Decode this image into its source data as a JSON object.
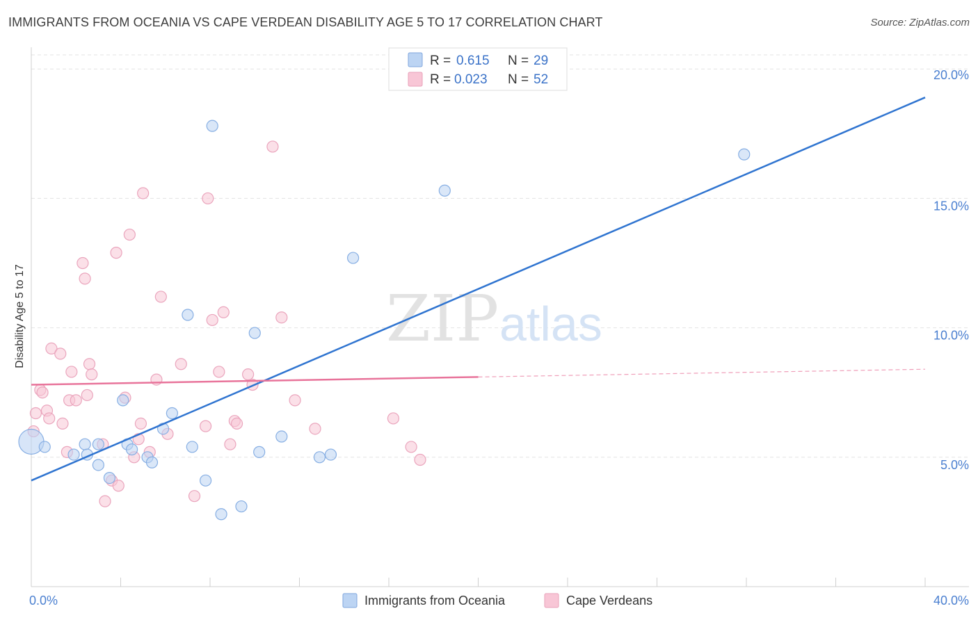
{
  "header": {
    "title": "IMMIGRANTS FROM OCEANIA VS CAPE VERDEAN DISABILITY AGE 5 TO 17 CORRELATION CHART",
    "source": "Source: ZipAtlas.com"
  },
  "watermark": {
    "zip": "ZIP",
    "atlas": "atlas"
  },
  "colors": {
    "blue": "#4a7fd0",
    "blue_fill": "#bcd4f3",
    "blue_line": "#2f74d0",
    "pink_fill": "#f8c6d6",
    "pink_line": "#e8739a"
  },
  "legend": {
    "rows": [
      {
        "r_label": "R =",
        "r_value": "0.615",
        "n_label": "N =",
        "n_value": "29"
      },
      {
        "r_label": "R =",
        "r_value": "0.023",
        "n_label": "N =",
        "n_value": "52"
      }
    ]
  },
  "bottom_legend": {
    "items": [
      "Immigrants from Oceania",
      "Cape Verdeans"
    ]
  },
  "chart_data": {
    "type": "scatter",
    "xlabel": "",
    "ylabel": "Disability Age 5 to 17",
    "xlim": [
      0,
      40
    ],
    "ylim": [
      0,
      21
    ],
    "x_tick_labels": [
      "0.0%",
      "40.0%"
    ],
    "y_ticks": [
      5,
      10,
      15,
      20
    ],
    "y_tick_labels": [
      "5.0%",
      "10.0%",
      "15.0%",
      "20.0%"
    ],
    "grid": "horizontal dashed",
    "legend_position": "top-center",
    "series": [
      {
        "name": "Immigrants from Oceania",
        "points": [
          [
            0.0,
            5.6
          ],
          [
            0.6,
            5.4
          ],
          [
            1.9,
            5.1
          ],
          [
            2.4,
            5.5
          ],
          [
            2.5,
            5.1
          ],
          [
            3.0,
            5.5
          ],
          [
            3.0,
            4.7
          ],
          [
            3.5,
            4.2
          ],
          [
            4.3,
            5.5
          ],
          [
            4.1,
            7.2
          ],
          [
            4.5,
            5.3
          ],
          [
            5.2,
            5.0
          ],
          [
            5.4,
            4.8
          ],
          [
            5.9,
            6.1
          ],
          [
            6.3,
            6.7
          ],
          [
            7.0,
            10.5
          ],
          [
            7.2,
            5.4
          ],
          [
            7.8,
            4.1
          ],
          [
            8.1,
            17.8
          ],
          [
            8.5,
            2.8
          ],
          [
            9.4,
            3.1
          ],
          [
            10.0,
            9.8
          ],
          [
            10.2,
            5.2
          ],
          [
            11.2,
            5.8
          ],
          [
            12.9,
            5.0
          ],
          [
            13.4,
            5.1
          ],
          [
            14.4,
            12.7
          ],
          [
            18.5,
            15.3
          ],
          [
            31.9,
            16.7
          ]
        ]
      },
      {
        "name": "Cape Verdeans",
        "points": [
          [
            0.1,
            6.0
          ],
          [
            0.2,
            6.7
          ],
          [
            0.4,
            7.6
          ],
          [
            0.5,
            7.5
          ],
          [
            0.7,
            6.8
          ],
          [
            0.8,
            6.5
          ],
          [
            0.9,
            9.2
          ],
          [
            1.3,
            9.0
          ],
          [
            1.4,
            6.3
          ],
          [
            1.6,
            5.2
          ],
          [
            1.7,
            7.2
          ],
          [
            1.8,
            8.3
          ],
          [
            2.0,
            7.2
          ],
          [
            2.3,
            12.5
          ],
          [
            2.4,
            11.9
          ],
          [
            2.5,
            7.4
          ],
          [
            2.6,
            8.6
          ],
          [
            2.7,
            8.2
          ],
          [
            3.2,
            5.5
          ],
          [
            3.3,
            3.3
          ],
          [
            3.6,
            4.1
          ],
          [
            3.8,
            12.9
          ],
          [
            3.9,
            3.9
          ],
          [
            4.2,
            7.3
          ],
          [
            4.4,
            13.6
          ],
          [
            4.6,
            5.0
          ],
          [
            4.8,
            5.7
          ],
          [
            4.9,
            6.3
          ],
          [
            5.0,
            15.2
          ],
          [
            5.3,
            5.2
          ],
          [
            5.6,
            8.0
          ],
          [
            5.8,
            11.2
          ],
          [
            6.1,
            5.9
          ],
          [
            6.7,
            8.6
          ],
          [
            7.3,
            3.5
          ],
          [
            7.8,
            6.2
          ],
          [
            7.9,
            15.0
          ],
          [
            8.1,
            10.3
          ],
          [
            8.4,
            8.3
          ],
          [
            8.6,
            10.6
          ],
          [
            8.9,
            5.5
          ],
          [
            9.1,
            6.4
          ],
          [
            9.2,
            6.3
          ],
          [
            9.7,
            8.2
          ],
          [
            9.9,
            7.8
          ],
          [
            10.8,
            17.0
          ],
          [
            11.2,
            10.4
          ],
          [
            11.8,
            7.2
          ],
          [
            12.7,
            6.1
          ],
          [
            16.2,
            6.5
          ],
          [
            17.0,
            5.4
          ],
          [
            17.4,
            4.9
          ]
        ]
      }
    ],
    "trend_lines": [
      {
        "series": "Immigrants from Oceania",
        "x0": 0,
        "y0": 4.1,
        "x1": 40,
        "y1": 18.9,
        "style": "solid"
      },
      {
        "series": "Cape Verdeans",
        "x0": 0,
        "y0": 7.8,
        "x1": 20,
        "y1": 8.1,
        "style": "solid"
      },
      {
        "series": "Cape Verdeans",
        "x0": 20,
        "y0": 8.1,
        "x1": 40,
        "y1": 8.4,
        "style": "dashed"
      }
    ]
  }
}
